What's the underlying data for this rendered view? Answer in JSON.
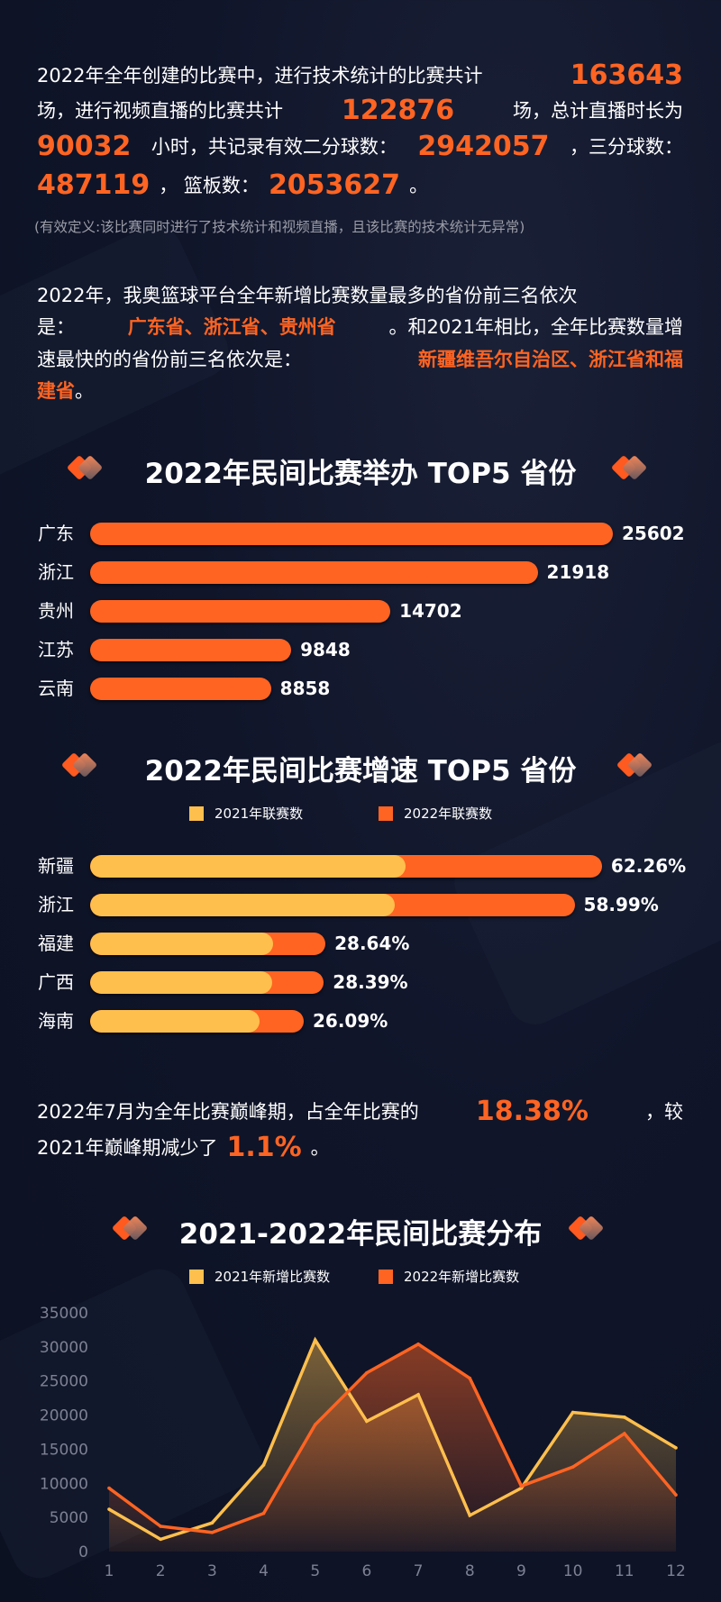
{
  "summary": {
    "lines": [
      [
        {
          "t": "2022年全年创建的比赛中，进行技术统计的比赛共计"
        },
        {
          "t": "163643",
          "h": true
        }
      ],
      [
        {
          "t": "场，进行视频直播的比赛共计"
        },
        {
          "t": "122876",
          "h": true
        },
        {
          "t": "场，总计直播时长为"
        }
      ],
      [
        {
          "t": "90032",
          "h": true
        },
        {
          "t": "小时，共记录有效二分球数："
        },
        {
          "t": "2942057",
          "h": true
        },
        {
          "t": "，三分球数："
        }
      ],
      [
        {
          "t": "487119",
          "h": true
        },
        {
          "t": "，  篮板数："
        },
        {
          "t": "2053627",
          "h": true
        },
        {
          "t": "。"
        }
      ]
    ],
    "note": "(有效定义:该比赛同时进行了技术统计和视频直播，且该比赛的技术统计无异常)"
  },
  "provinces_text": {
    "lines": [
      [
        {
          "t": "2022年，我奥篮球平台全年新增比赛数量最多的省份前三名依次"
        }
      ],
      [
        {
          "t": "是："
        },
        {
          "t": "广东省、浙江省、贵州省",
          "h": true
        },
        {
          "t": "。和2021年相比，全年比赛数量增"
        }
      ],
      [
        {
          "t": "速最快的的省份前三名依次是："
        },
        {
          "t": "新疆维吾尔自治区、浙江省和福",
          "h": true
        }
      ],
      [
        {
          "t": "建省",
          "h": true
        },
        {
          "t": "。"
        }
      ]
    ]
  },
  "peak_text": {
    "lines": [
      [
        {
          "t": "2022年7月为全年比赛巅峰期，占全年比赛的"
        },
        {
          "t": "18.38%",
          "h": true
        },
        {
          "t": "，较"
        }
      ],
      [
        {
          "t": "2021年巅峰期减少了"
        },
        {
          "t": "1.1%",
          "h": true
        },
        {
          "t": "。"
        }
      ]
    ]
  },
  "chart_data": [
    {
      "type": "bar",
      "orientation": "horizontal",
      "title": "2022年民间比赛举办 TOP5 省份",
      "categories": [
        "广东",
        "浙江",
        "贵州",
        "江苏",
        "云南"
      ],
      "values": [
        25602,
        21918,
        14702,
        9848,
        8858
      ],
      "labels": [
        "25602",
        "21918",
        "14702",
        "9848",
        "8858"
      ],
      "color": "#ff6422"
    },
    {
      "type": "bar",
      "orientation": "horizontal",
      "stacked": true,
      "title": "2022年民间比赛增速 TOP5 省份",
      "legend": [
        "2021年联赛数",
        "2022年联赛数"
      ],
      "legend_position": "top",
      "colors": [
        "#ffbf4d",
        "#ff6422"
      ],
      "categories": [
        "新疆",
        "浙江",
        "福建",
        "广西",
        "海南"
      ],
      "growth_percent": [
        62.26,
        58.99,
        28.64,
        28.39,
        26.09
      ],
      "labels": [
        "62.26%",
        "58.99%",
        "28.64%",
        "28.39%",
        "26.09%"
      ],
      "base_2021_relative": [
        1.0,
        0.966,
        0.58,
        0.577,
        0.537
      ]
    },
    {
      "type": "area",
      "title": "2021-2022年民间比赛分布",
      "legend": [
        "2021年新增比赛数",
        "2022年新增比赛数"
      ],
      "legend_position": "top",
      "x": [
        1,
        2,
        3,
        4,
        5,
        6,
        7,
        8,
        9,
        10,
        11,
        12
      ],
      "x_tick_labels": [
        "1",
        "2",
        "3",
        "4",
        "5",
        "6",
        "7",
        "8",
        "9",
        "10",
        "11",
        "12"
      ],
      "y_tick_labels": [
        "0",
        "5000",
        "10000",
        "15000",
        "20000",
        "25000",
        "30000",
        "35000"
      ],
      "ylim": [
        0,
        35000
      ],
      "grid": false,
      "series": [
        {
          "name": "2021年新增比赛数",
          "color": "#ffbf4d",
          "values": [
            6200,
            1800,
            4200,
            12700,
            31000,
            19100,
            23000,
            5300,
            9300,
            20400,
            19700,
            15200
          ]
        },
        {
          "name": "2022年新增比赛数",
          "color": "#ff6422",
          "values": [
            9300,
            3700,
            2800,
            5600,
            18600,
            26200,
            30400,
            25400,
            9600,
            12400,
            17300,
            8300
          ]
        }
      ]
    }
  ]
}
